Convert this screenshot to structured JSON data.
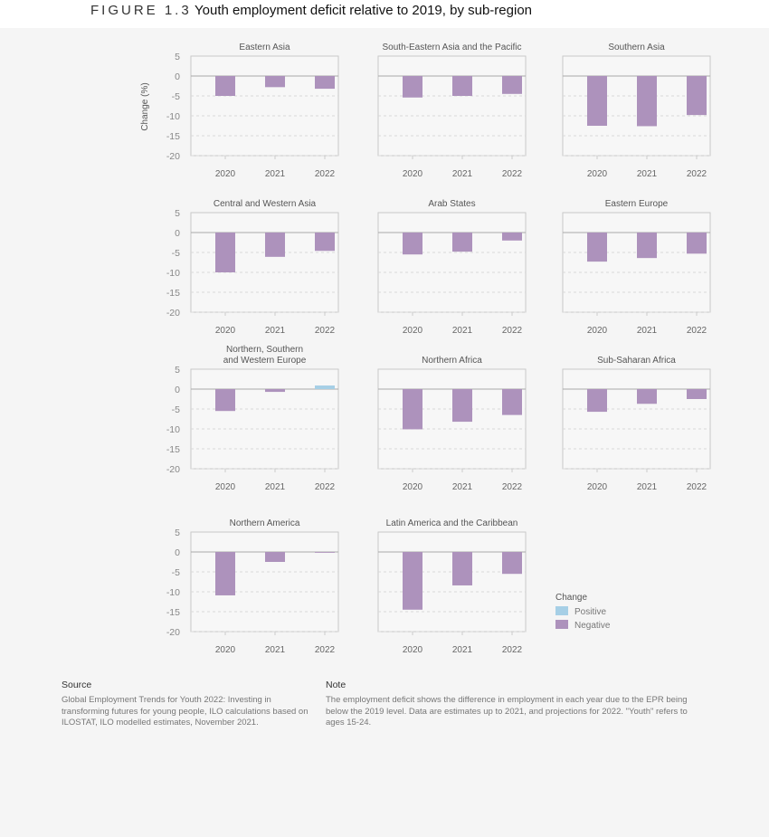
{
  "header": {
    "figure_label": "FIGURE 1.3",
    "title": "Youth employment deficit relative to 2019, by sub-region"
  },
  "chart_data": {
    "type": "bar",
    "ylabel": "Change (%)",
    "ylim": [
      -20,
      5
    ],
    "yticks": [
      5,
      0,
      -5,
      -10,
      -15,
      -20
    ],
    "categories": [
      "2020",
      "2021",
      "2022"
    ],
    "grid": true,
    "colors": {
      "Positive": "#a6cfe6",
      "Negative": "#ad92bc"
    },
    "legend": {
      "title": "Change",
      "entries": [
        "Positive",
        "Negative"
      ],
      "placement": "bottom-right"
    },
    "panels": [
      {
        "title": "Eastern Asia",
        "values": [
          -5.0,
          -2.8,
          -3.2
        ]
      },
      {
        "title": "South-Eastern Asia and the Pacific",
        "values": [
          -5.4,
          -5.0,
          -4.5
        ]
      },
      {
        "title": "Southern Asia",
        "values": [
          -12.5,
          -12.6,
          -9.8
        ]
      },
      {
        "title": "Central and Western Asia",
        "values": [
          -10.0,
          -6.1,
          -4.6
        ]
      },
      {
        "title": "Arab States",
        "values": [
          -5.5,
          -4.8,
          -2.0
        ]
      },
      {
        "title": "Eastern Europe",
        "values": [
          -7.3,
          -6.4,
          -5.3
        ]
      },
      {
        "title": "Northern, Southern and Western Europe",
        "title_lines": [
          "Northern, Southern",
          "and Western Europe"
        ],
        "values": [
          -5.5,
          -0.7,
          0.9
        ]
      },
      {
        "title": "Northern Africa",
        "values": [
          -10.1,
          -8.2,
          -6.5
        ]
      },
      {
        "title": "Sub-Saharan Africa",
        "values": [
          -5.7,
          -3.7,
          -2.5
        ]
      },
      {
        "title": "Northern America",
        "values": [
          -10.9,
          -2.5,
          -0.2
        ]
      },
      {
        "title": "Latin America and the Caribbean",
        "values": [
          -14.5,
          -8.4,
          -5.5
        ]
      }
    ]
  },
  "source": {
    "heading": "Source",
    "text": "Global Employment Trends for Youth 2022: Investing in transforming futures for young people, ILO calculations based on ILOSTAT, ILO modelled estimates, November 2021."
  },
  "note": {
    "heading": "Note",
    "text": "The employment deficit shows the difference in employment in each year due to the EPR being below the 2019 level. Data are estimates up to 2021, and projections for 2022. \"Youth\" refers to ages 15-24."
  }
}
